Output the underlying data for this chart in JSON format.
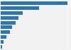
{
  "values": [
    100,
    57,
    33,
    26,
    22,
    17,
    14,
    9,
    4,
    2
  ],
  "bar_color": "#2e75b6",
  "background_color": "#f2f2f2",
  "grid_color": "#ffffff",
  "bar_height": 0.72,
  "figsize": [
    1.0,
    0.71
  ],
  "dpi": 100
}
